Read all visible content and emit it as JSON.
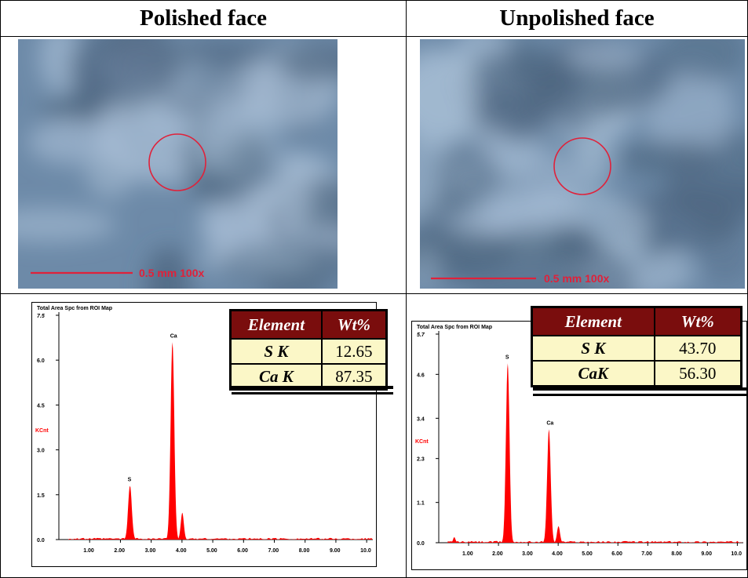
{
  "headers": {
    "left": "Polished face",
    "right": "Unpolished face"
  },
  "micrographs": [
    {
      "scale_label": "0.5 mm  100x"
    },
    {
      "scale_label": "0.5 mm  100x"
    }
  ],
  "colors": {
    "micro_base": "#6d8aa8",
    "micro_dark": "#4d6680",
    "micro_light": "#a9bfd6",
    "marker": "#e0213a",
    "peak_fill": "#ff0000",
    "table_header": "#7a0d0d",
    "table_cell": "#fbf7c7"
  },
  "tables": [
    {
      "columns": [
        "Element",
        "Wt%"
      ],
      "rows": [
        [
          "S K",
          "12.65"
        ],
        [
          "Ca K",
          "87.35"
        ]
      ]
    },
    {
      "columns": [
        "Element",
        "Wt%"
      ],
      "rows": [
        [
          "S K",
          "43.70"
        ],
        [
          "CaK",
          "56.30"
        ]
      ]
    }
  ],
  "chart_data": [
    {
      "type": "area",
      "title": "Total Area Spc from ROI Map",
      "ylabel": "KCnt",
      "xlabel": "",
      "xlim": [
        0,
        10.2
      ],
      "ylim": [
        0,
        7.5
      ],
      "x_ticks": [
        "1.00",
        "2.00",
        "3.00",
        "4.00",
        "5.00",
        "6.00",
        "7.00",
        "8.00",
        "9.00",
        "10.0"
      ],
      "y_ticks": [
        "0.0",
        "1.5",
        "3.0",
        "4.5",
        "6.0",
        "7.5"
      ],
      "y_tick_values": [
        0,
        1.5,
        3.0,
        4.5,
        6.0,
        7.5
      ],
      "peaks": [
        {
          "label": "S",
          "x": 2.31,
          "y": 1.8,
          "width": 0.06
        },
        {
          "label": "Ca",
          "x": 3.69,
          "y": 6.6,
          "width": 0.06
        },
        {
          "label": "",
          "x": 4.01,
          "y": 0.9,
          "width": 0.05
        }
      ]
    },
    {
      "type": "area",
      "title": "Total Area Spc from ROI Map",
      "ylabel": "KCnt",
      "xlabel": "",
      "xlim": [
        0,
        10.2
      ],
      "ylim": [
        0,
        5.7
      ],
      "x_ticks": [
        "1.00",
        "2.00",
        "3.00",
        "4.00",
        "5.00",
        "6.00",
        "7.00",
        "8.00",
        "9.00",
        "10.0"
      ],
      "y_ticks": [
        "0.0",
        "1.1",
        "2.3",
        "3.4",
        "4.6",
        "5.7"
      ],
      "y_tick_values": [
        0,
        1.1,
        2.3,
        3.4,
        4.6,
        5.7
      ],
      "peaks": [
        {
          "label": "S",
          "x": 2.31,
          "y": 4.9,
          "width": 0.06
        },
        {
          "label": "Ca",
          "x": 3.69,
          "y": 3.1,
          "width": 0.06
        },
        {
          "label": "",
          "x": 4.01,
          "y": 0.45,
          "width": 0.05
        },
        {
          "label": "",
          "x": 0.52,
          "y": 0.15,
          "width": 0.04
        }
      ]
    }
  ]
}
